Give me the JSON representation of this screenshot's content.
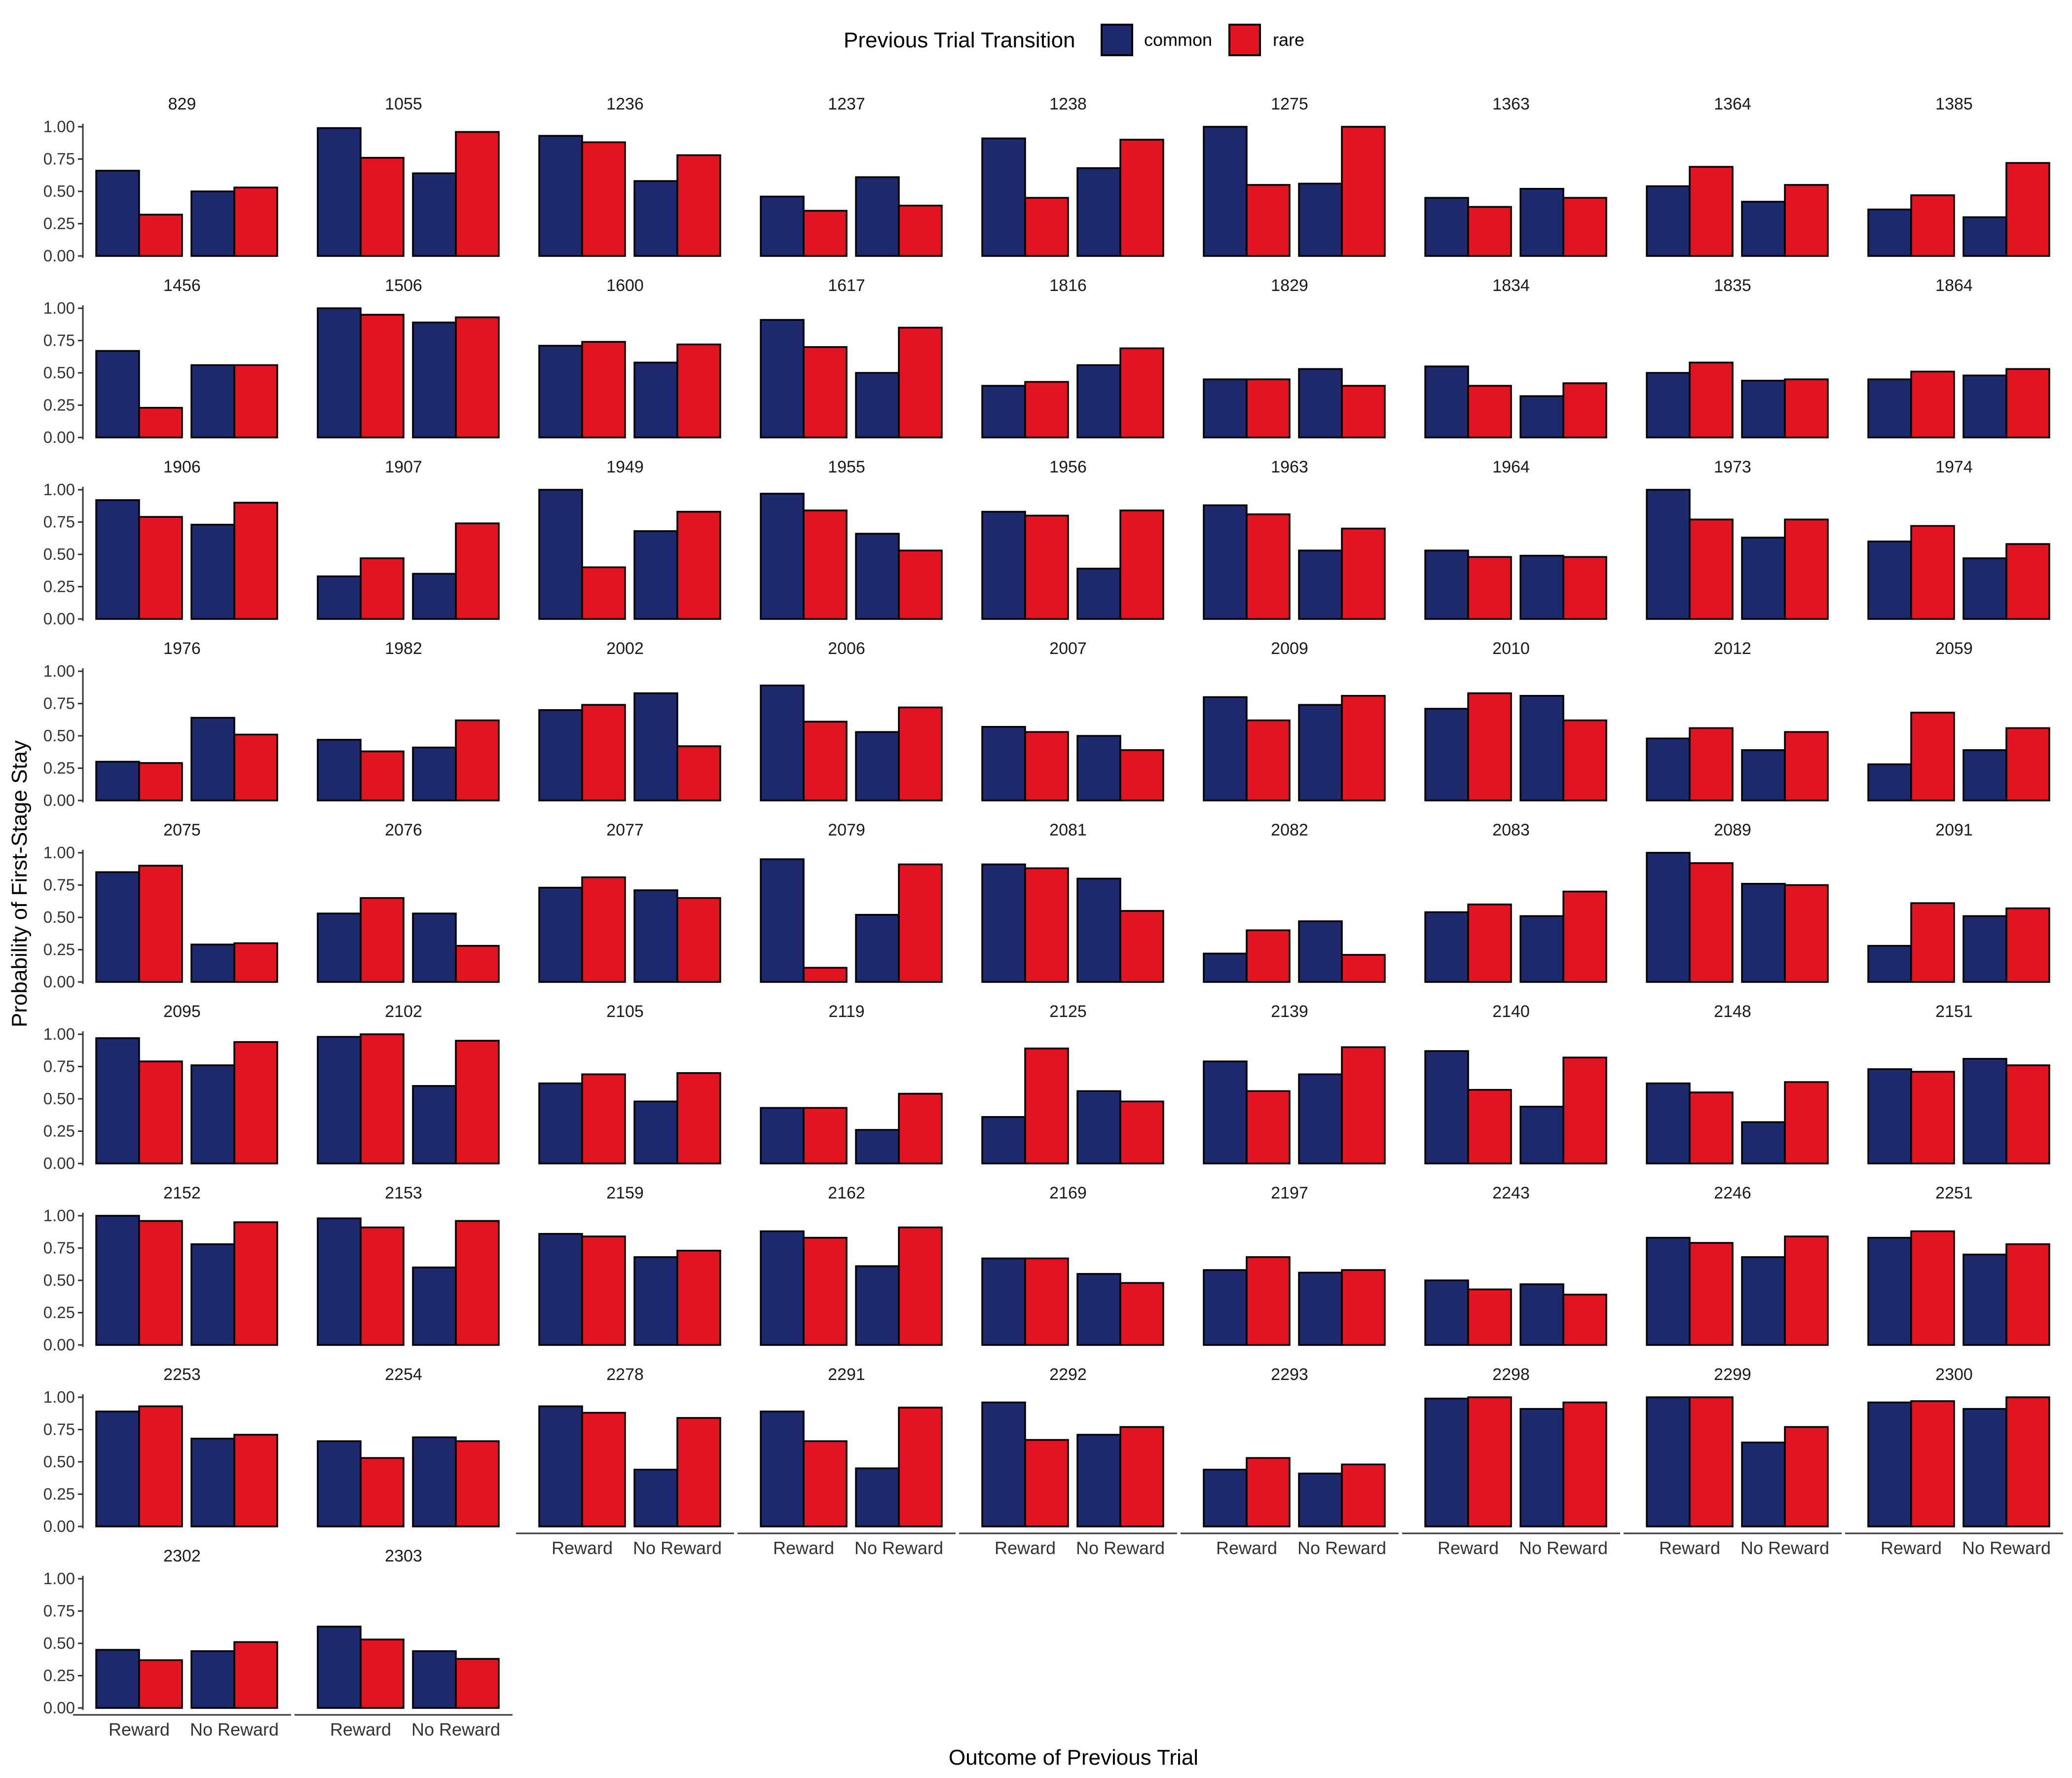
{
  "chart_data": {
    "type": "bar",
    "layout": "facet_wrap",
    "xlabel": "Outcome of Previous Trial",
    "ylabel": "Probability of First-Stage Stay",
    "ylim": [
      0,
      1.05
    ],
    "yticks": [
      "0.00",
      "0.25",
      "0.50",
      "0.75",
      "1.00"
    ],
    "categories": [
      "Reward",
      "No Reward"
    ],
    "legend": {
      "title": "Previous Trial Transition",
      "position": "top",
      "entries": [
        {
          "name": "common",
          "color": "#1f2a6e"
        },
        {
          "name": "rare",
          "color": "#e31422"
        }
      ]
    },
    "grid": false,
    "panels": [
      {
        "id": "829",
        "common": [
          0.66,
          0.5
        ],
        "rare": [
          0.32,
          0.53
        ]
      },
      {
        "id": "1055",
        "common": [
          0.99,
          0.64
        ],
        "rare": [
          0.76,
          0.96
        ]
      },
      {
        "id": "1236",
        "common": [
          0.93,
          0.58
        ],
        "rare": [
          0.88,
          0.78
        ]
      },
      {
        "id": "1237",
        "common": [
          0.46,
          0.61
        ],
        "rare": [
          0.35,
          0.39
        ]
      },
      {
        "id": "1238",
        "common": [
          0.91,
          0.68
        ],
        "rare": [
          0.45,
          0.9
        ]
      },
      {
        "id": "1275",
        "common": [
          1.0,
          0.56
        ],
        "rare": [
          0.55,
          1.0
        ]
      },
      {
        "id": "1363",
        "common": [
          0.45,
          0.52
        ],
        "rare": [
          0.38,
          0.45
        ]
      },
      {
        "id": "1364",
        "common": [
          0.54,
          0.42
        ],
        "rare": [
          0.69,
          0.55
        ]
      },
      {
        "id": "1385",
        "common": [
          0.36,
          0.3
        ],
        "rare": [
          0.47,
          0.72
        ]
      },
      {
        "id": "1456",
        "common": [
          0.67,
          0.56
        ],
        "rare": [
          0.23,
          0.56
        ]
      },
      {
        "id": "1506",
        "common": [
          1.0,
          0.89
        ],
        "rare": [
          0.95,
          0.93
        ]
      },
      {
        "id": "1600",
        "common": [
          0.71,
          0.58
        ],
        "rare": [
          0.74,
          0.72
        ]
      },
      {
        "id": "1617",
        "common": [
          0.91,
          0.5
        ],
        "rare": [
          0.7,
          0.85
        ]
      },
      {
        "id": "1816",
        "common": [
          0.4,
          0.56
        ],
        "rare": [
          0.43,
          0.69
        ]
      },
      {
        "id": "1829",
        "common": [
          0.45,
          0.53
        ],
        "rare": [
          0.45,
          0.4
        ]
      },
      {
        "id": "1834",
        "common": [
          0.55,
          0.32
        ],
        "rare": [
          0.4,
          0.42
        ]
      },
      {
        "id": "1835",
        "common": [
          0.5,
          0.44
        ],
        "rare": [
          0.58,
          0.45
        ]
      },
      {
        "id": "1864",
        "common": [
          0.45,
          0.48
        ],
        "rare": [
          0.51,
          0.53
        ]
      },
      {
        "id": "1906",
        "common": [
          0.92,
          0.73
        ],
        "rare": [
          0.79,
          0.9
        ]
      },
      {
        "id": "1907",
        "common": [
          0.33,
          0.35
        ],
        "rare": [
          0.47,
          0.74
        ]
      },
      {
        "id": "1949",
        "common": [
          1.0,
          0.68
        ],
        "rare": [
          0.4,
          0.83
        ]
      },
      {
        "id": "1955",
        "common": [
          0.97,
          0.66
        ],
        "rare": [
          0.84,
          0.53
        ]
      },
      {
        "id": "1956",
        "common": [
          0.83,
          0.39
        ],
        "rare": [
          0.8,
          0.84
        ]
      },
      {
        "id": "1963",
        "common": [
          0.88,
          0.53
        ],
        "rare": [
          0.81,
          0.7
        ]
      },
      {
        "id": "1964",
        "common": [
          0.53,
          0.49
        ],
        "rare": [
          0.48,
          0.48
        ]
      },
      {
        "id": "1973",
        "common": [
          1.0,
          0.63
        ],
        "rare": [
          0.77,
          0.77
        ]
      },
      {
        "id": "1974",
        "common": [
          0.6,
          0.47
        ],
        "rare": [
          0.72,
          0.58
        ]
      },
      {
        "id": "1976",
        "common": [
          0.3,
          0.64
        ],
        "rare": [
          0.29,
          0.51
        ]
      },
      {
        "id": "1982",
        "common": [
          0.47,
          0.41
        ],
        "rare": [
          0.38,
          0.62
        ]
      },
      {
        "id": "2002",
        "common": [
          0.7,
          0.83
        ],
        "rare": [
          0.74,
          0.42
        ]
      },
      {
        "id": "2006",
        "common": [
          0.89,
          0.53
        ],
        "rare": [
          0.61,
          0.72
        ]
      },
      {
        "id": "2007",
        "common": [
          0.57,
          0.5
        ],
        "rare": [
          0.53,
          0.39
        ]
      },
      {
        "id": "2009",
        "common": [
          0.8,
          0.74
        ],
        "rare": [
          0.62,
          0.81
        ]
      },
      {
        "id": "2010",
        "common": [
          0.71,
          0.81
        ],
        "rare": [
          0.83,
          0.62
        ]
      },
      {
        "id": "2012",
        "common": [
          0.48,
          0.39
        ],
        "rare": [
          0.56,
          0.53
        ]
      },
      {
        "id": "2059",
        "common": [
          0.28,
          0.39
        ],
        "rare": [
          0.68,
          0.56
        ]
      },
      {
        "id": "2075",
        "common": [
          0.85,
          0.29
        ],
        "rare": [
          0.9,
          0.3
        ]
      },
      {
        "id": "2076",
        "common": [
          0.53,
          0.53
        ],
        "rare": [
          0.65,
          0.28
        ]
      },
      {
        "id": "2077",
        "common": [
          0.73,
          0.71
        ],
        "rare": [
          0.81,
          0.65
        ]
      },
      {
        "id": "2079",
        "common": [
          0.95,
          0.52
        ],
        "rare": [
          0.11,
          0.91
        ]
      },
      {
        "id": "2081",
        "common": [
          0.91,
          0.8
        ],
        "rare": [
          0.88,
          0.55
        ]
      },
      {
        "id": "2082",
        "common": [
          0.22,
          0.47
        ],
        "rare": [
          0.4,
          0.21
        ]
      },
      {
        "id": "2083",
        "common": [
          0.54,
          0.51
        ],
        "rare": [
          0.6,
          0.7
        ]
      },
      {
        "id": "2089",
        "common": [
          1.0,
          0.76
        ],
        "rare": [
          0.92,
          0.75
        ]
      },
      {
        "id": "2091",
        "common": [
          0.28,
          0.51
        ],
        "rare": [
          0.61,
          0.57
        ]
      },
      {
        "id": "2095",
        "common": [
          0.97,
          0.76
        ],
        "rare": [
          0.79,
          0.94
        ]
      },
      {
        "id": "2102",
        "common": [
          0.98,
          0.6
        ],
        "rare": [
          1.0,
          0.95
        ]
      },
      {
        "id": "2105",
        "common": [
          0.62,
          0.48
        ],
        "rare": [
          0.69,
          0.7
        ]
      },
      {
        "id": "2119",
        "common": [
          0.43,
          0.26
        ],
        "rare": [
          0.43,
          0.54
        ]
      },
      {
        "id": "2125",
        "common": [
          0.36,
          0.56
        ],
        "rare": [
          0.89,
          0.48
        ]
      },
      {
        "id": "2139",
        "common": [
          0.79,
          0.69
        ],
        "rare": [
          0.56,
          0.9
        ]
      },
      {
        "id": "2140",
        "common": [
          0.87,
          0.44
        ],
        "rare": [
          0.57,
          0.82
        ]
      },
      {
        "id": "2148",
        "common": [
          0.62,
          0.32
        ],
        "rare": [
          0.55,
          0.63
        ]
      },
      {
        "id": "2151",
        "common": [
          0.73,
          0.81
        ],
        "rare": [
          0.71,
          0.76
        ]
      },
      {
        "id": "2152",
        "common": [
          1.0,
          0.78
        ],
        "rare": [
          0.96,
          0.95
        ]
      },
      {
        "id": "2153",
        "common": [
          0.98,
          0.6
        ],
        "rare": [
          0.91,
          0.96
        ]
      },
      {
        "id": "2159",
        "common": [
          0.86,
          0.68
        ],
        "rare": [
          0.84,
          0.73
        ]
      },
      {
        "id": "2162",
        "common": [
          0.88,
          0.61
        ],
        "rare": [
          0.83,
          0.91
        ]
      },
      {
        "id": "2169",
        "common": [
          0.67,
          0.55
        ],
        "rare": [
          0.67,
          0.48
        ]
      },
      {
        "id": "2197",
        "common": [
          0.58,
          0.56
        ],
        "rare": [
          0.68,
          0.58
        ]
      },
      {
        "id": "2243",
        "common": [
          0.5,
          0.47
        ],
        "rare": [
          0.43,
          0.39
        ]
      },
      {
        "id": "2246",
        "common": [
          0.83,
          0.68
        ],
        "rare": [
          0.79,
          0.84
        ]
      },
      {
        "id": "2251",
        "common": [
          0.83,
          0.7
        ],
        "rare": [
          0.88,
          0.78
        ]
      },
      {
        "id": "2253",
        "common": [
          0.89,
          0.68
        ],
        "rare": [
          0.93,
          0.71
        ]
      },
      {
        "id": "2254",
        "common": [
          0.66,
          0.69
        ],
        "rare": [
          0.53,
          0.66
        ]
      },
      {
        "id": "2278",
        "common": [
          0.93,
          0.44
        ],
        "rare": [
          0.88,
          0.84
        ]
      },
      {
        "id": "2291",
        "common": [
          0.89,
          0.45
        ],
        "rare": [
          0.66,
          0.92
        ]
      },
      {
        "id": "2292",
        "common": [
          0.96,
          0.71
        ],
        "rare": [
          0.67,
          0.77
        ]
      },
      {
        "id": "2293",
        "common": [
          0.44,
          0.41
        ],
        "rare": [
          0.53,
          0.48
        ]
      },
      {
        "id": "2298",
        "common": [
          0.99,
          0.91
        ],
        "rare": [
          1.0,
          0.96
        ]
      },
      {
        "id": "2299",
        "common": [
          1.0,
          0.65
        ],
        "rare": [
          1.0,
          0.77
        ]
      },
      {
        "id": "2300",
        "common": [
          0.96,
          0.91
        ],
        "rare": [
          0.97,
          1.0
        ]
      },
      {
        "id": "2302",
        "common": [
          0.45,
          0.44
        ],
        "rare": [
          0.37,
          0.51
        ]
      },
      {
        "id": "2303",
        "common": [
          0.63,
          0.44
        ],
        "rare": [
          0.53,
          0.38
        ]
      }
    ]
  }
}
